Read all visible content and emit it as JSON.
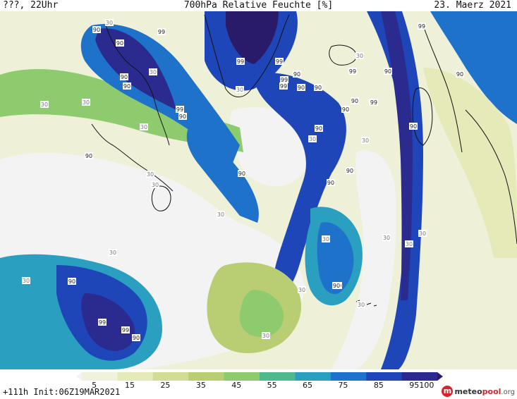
{
  "header": {
    "left": "???, 22Uhr",
    "title": "700hPa Relative Feuchte [%]",
    "date": "23. Maerz 2021"
  },
  "colorbar": {
    "ticks": [
      "5",
      "15",
      "25",
      "35",
      "45",
      "55",
      "65",
      "75",
      "85",
      "95",
      "100"
    ],
    "colors": [
      "#f2f2f2",
      "#f0f2de",
      "#e6eab8",
      "#d3dc94",
      "#b9cd72",
      "#8ecb6e",
      "#4fb98e",
      "#2a9fc0",
      "#1e72c9",
      "#1f46b8",
      "#2b2a8e",
      "#2a1a6a"
    ]
  },
  "footer": {
    "run": "+111h Init:06Z19MAR2021"
  },
  "logo": {
    "icon": "meteopool-logo-icon",
    "name_a": "meteo",
    "name_b": "pool",
    "name_c": ".org"
  },
  "map": {
    "contour_labels": [
      "90",
      "30",
      "90",
      "99",
      "90",
      "30",
      "30",
      "30",
      "99",
      "90",
      "90",
      "30",
      "30",
      "30",
      "99",
      "99",
      "90",
      "99",
      "99",
      "90",
      "90",
      "99",
      "99",
      "90",
      "90",
      "99",
      "90",
      "30",
      "90",
      "30",
      "90",
      "30",
      "30",
      "90",
      "30",
      "90",
      "30",
      "90",
      "90",
      "30",
      "30",
      "30",
      "30",
      "30",
      "90",
      "99",
      "99",
      "90",
      "30",
      "30",
      "90",
      "90",
      "30",
      "99",
      "90"
    ]
  }
}
